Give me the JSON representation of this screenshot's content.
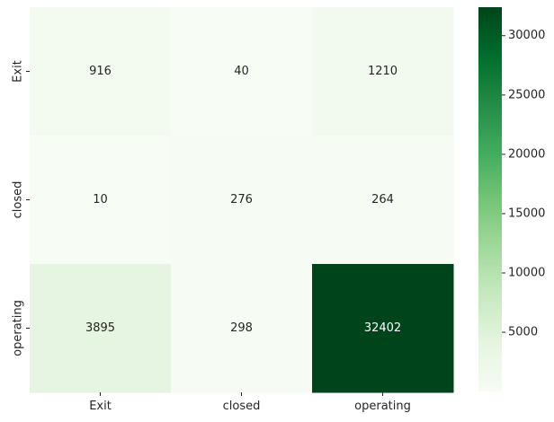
{
  "chart_data": {
    "type": "heatmap",
    "title": "",
    "xlabel": "",
    "ylabel": "",
    "x_categories": [
      "Exit",
      "closed",
      "operating"
    ],
    "y_categories": [
      "Exit",
      "closed",
      "operating"
    ],
    "values": [
      [
        916,
        40,
        1210
      ],
      [
        10,
        276,
        264
      ],
      [
        3895,
        298,
        32402
      ]
    ],
    "colormap": "Greens",
    "colorbar": {
      "min": 10,
      "max": 32402,
      "ticks": [
        5000,
        10000,
        15000,
        20000,
        25000,
        30000
      ]
    },
    "annotations": true,
    "grid": false
  }
}
